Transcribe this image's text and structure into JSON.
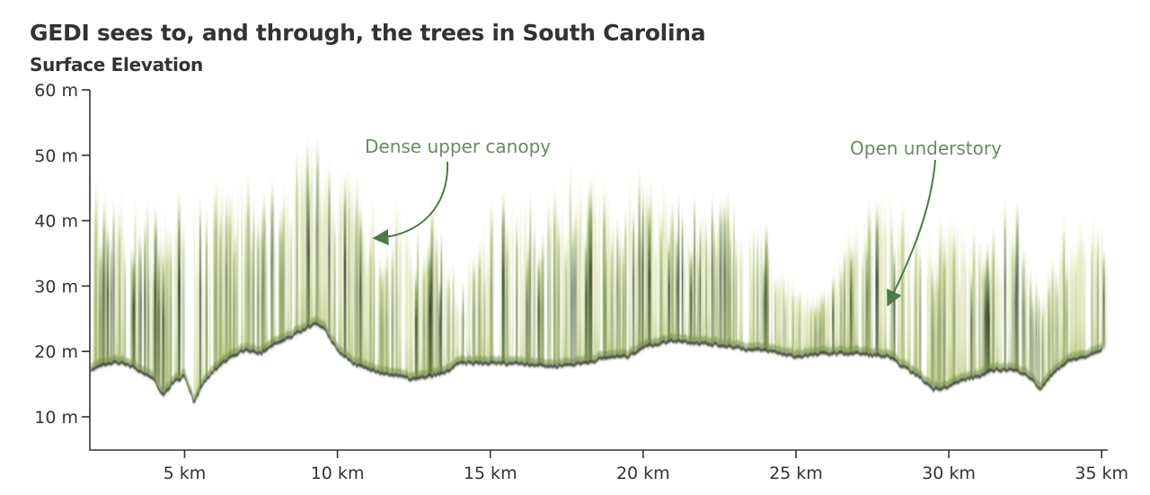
{
  "header": {
    "title": "GEDI sees to, and through, the trees in South Carolina",
    "subtitle": "Surface Elevation"
  },
  "colors": {
    "text": "#333333",
    "axis": "#333333",
    "annotation": "#6a8a5e",
    "annotation_arrow": "#4f7a46",
    "canopy_light": "#dfe3b0",
    "canopy_mid": "#a7b565",
    "canopy_dark": "#3d5a2a",
    "ground": "#1e1e1e"
  },
  "chart_data": {
    "type": "heatmap",
    "title": "GEDI sees to, and through, the trees in South Carolina",
    "subtitle": "Surface Elevation",
    "xlabel": "",
    "ylabel": "",
    "xlim": [
      1.9,
      35.2
    ],
    "ylim": [
      5,
      60
    ],
    "x_ticks": [
      5,
      10,
      15,
      20,
      25,
      30,
      35
    ],
    "x_tick_labels": [
      "5 km",
      "10 km",
      "15 km",
      "20 km",
      "25 km",
      "30 km",
      "35 km"
    ],
    "y_ticks": [
      10,
      20,
      30,
      40,
      50,
      60
    ],
    "y_tick_labels": [
      "10 m",
      "20 m",
      "30 m",
      "40 m",
      "50 m",
      "60 m"
    ],
    "grid": false,
    "description": "GEDI lidar waveform returns along a ground track; vertical streaks show canopy return energy (light to dark green), dark band shows ground surface.",
    "ground_profile": {
      "x_km": [
        1.9,
        2.5,
        3.0,
        3.5,
        4.0,
        4.3,
        4.6,
        5.0,
        5.3,
        5.6,
        6.0,
        6.5,
        7.0,
        7.5,
        8.0,
        8.5,
        9.0,
        9.3,
        9.6,
        10.0,
        10.5,
        11.0,
        11.5,
        12.0,
        12.5,
        13.0,
        13.5,
        14.0,
        15.0,
        16.0,
        17.0,
        18.0,
        19.0,
        19.5,
        20.0,
        21.0,
        22.0,
        23.0,
        23.5,
        24.0,
        25.0,
        26.0,
        27.0,
        28.0,
        28.5,
        29.0,
        29.5,
        30.0,
        30.5,
        31.0,
        31.5,
        32.0,
        32.5,
        33.0,
        33.5,
        34.0,
        34.5,
        35.0,
        35.2
      ],
      "elevation_m": [
        17,
        18,
        18,
        17,
        15.5,
        13,
        15,
        16,
        12,
        15,
        17,
        19,
        20,
        19.5,
        21,
        22,
        23.5,
        24,
        23,
        20,
        18,
        17,
        16.5,
        16,
        15.5,
        16,
        16.5,
        18,
        18,
        18,
        17.5,
        18,
        19,
        19,
        20.5,
        21.5,
        21,
        20.5,
        20,
        20,
        19,
        19.5,
        19.5,
        19,
        17.5,
        16,
        14,
        14.5,
        15.5,
        16,
        17,
        17,
        16.5,
        14,
        17,
        18.5,
        19,
        20,
        21
      ]
    },
    "canopy_top": {
      "x_km": [
        2,
        3,
        4,
        5,
        6,
        7,
        8,
        9,
        10,
        11,
        12,
        13,
        14,
        15,
        16,
        17,
        18,
        19,
        20,
        21,
        22,
        23,
        24,
        25,
        26,
        27,
        28,
        29,
        30,
        31,
        32,
        33,
        34,
        35
      ],
      "height_m": [
        50,
        46,
        44,
        46,
        47,
        48,
        47,
        56,
        52,
        45,
        43,
        44,
        32,
        45,
        45,
        46,
        52,
        45,
        51,
        45,
        44,
        46,
        40,
        30,
        30,
        46,
        46,
        42,
        43,
        40,
        47,
        30,
        45,
        43
      ]
    },
    "annotations": [
      {
        "text": "Dense upper canopy",
        "x_km": 11.2,
        "y_m": 37
      },
      {
        "text": "Open understory",
        "x_km": 28.4,
        "y_m": 28
      }
    ]
  },
  "annotations": {
    "dense": "Dense upper canopy",
    "open": "Open understory"
  }
}
